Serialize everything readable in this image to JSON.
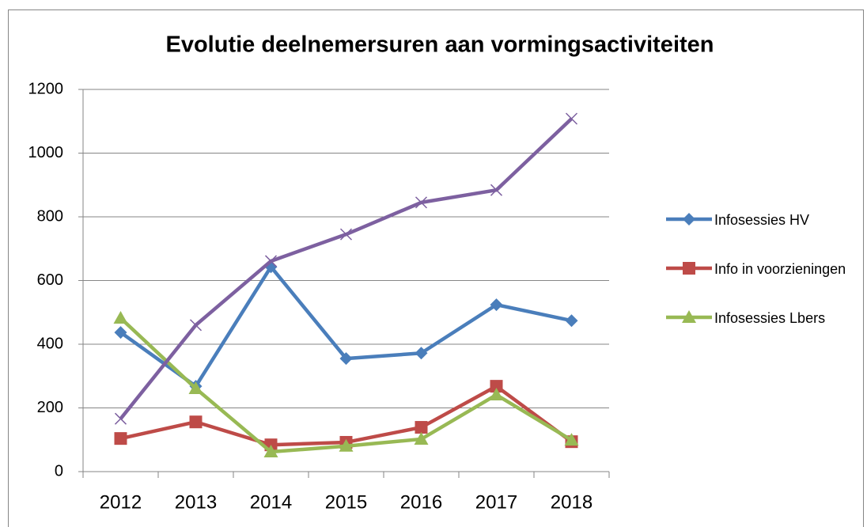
{
  "chart_data": {
    "type": "line",
    "title": "Evolutie deelnemersuren aan vormingsactiviteiten",
    "categories": [
      "2012",
      "2013",
      "2014",
      "2015",
      "2016",
      "2017",
      "2018"
    ],
    "series": [
      {
        "name": "Infosessies HV",
        "color": "#4a7ebb",
        "marker": "diamond",
        "values": [
          437,
          268,
          643,
          355,
          372,
          524,
          474
        ]
      },
      {
        "name": "Info in voorzieningen",
        "color": "#be4b48",
        "marker": "square",
        "values": [
          104,
          156,
          84,
          92,
          139,
          268,
          94
        ]
      },
      {
        "name": "Infosessies Lbers",
        "color": "#98b954",
        "marker": "triangle",
        "values": [
          482,
          261,
          62,
          80,
          102,
          241,
          99
        ]
      },
      {
        "color": "#7d60a0",
        "marker": "x",
        "values": [
          166,
          460,
          661,
          745,
          845,
          884,
          1108
        ]
      }
    ],
    "ylim": [
      0,
      1200
    ],
    "yticks": [
      0,
      200,
      400,
      600,
      800,
      1000,
      1200
    ],
    "grid": true,
    "legend": "right"
  }
}
